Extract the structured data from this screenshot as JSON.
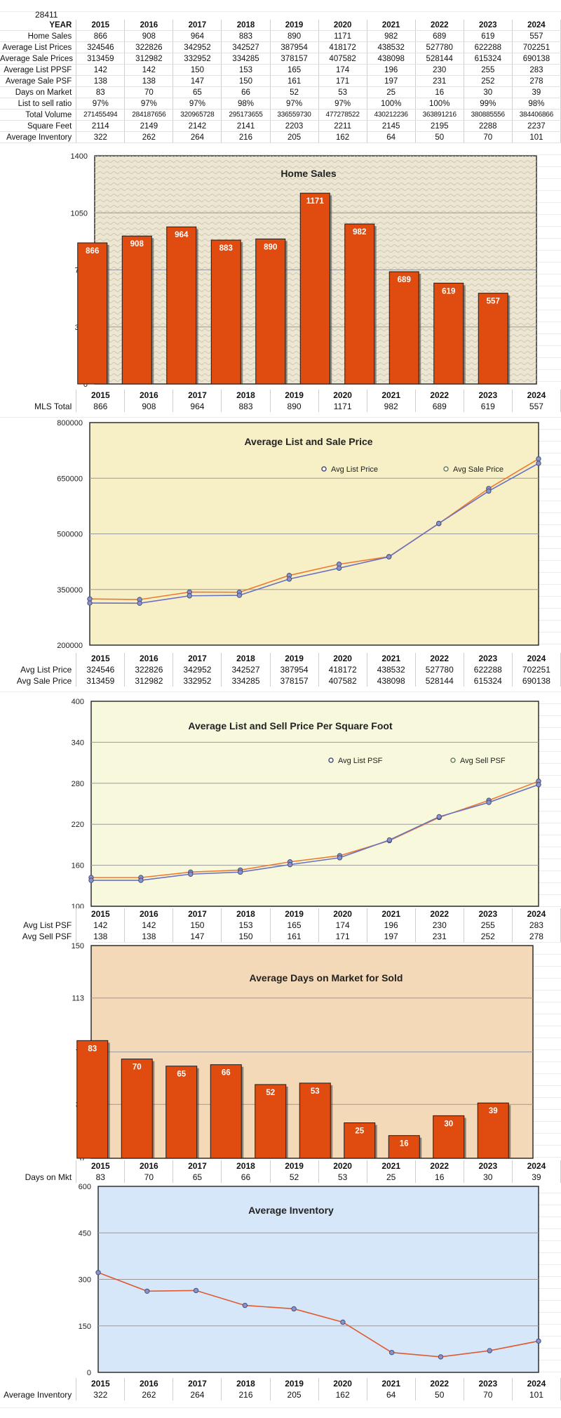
{
  "sheet_id": "28411",
  "table": {
    "year_header": "YEAR",
    "years": [
      "2015",
      "2016",
      "2017",
      "2018",
      "2019",
      "2020",
      "2021",
      "2022",
      "2023",
      "2024"
    ],
    "rows": [
      {
        "label": "Home Sales",
        "values": [
          "866",
          "908",
          "964",
          "883",
          "890",
          "1171",
          "982",
          "689",
          "619",
          "557"
        ]
      },
      {
        "label": "Average List Prices",
        "values": [
          "324546",
          "322826",
          "342952",
          "342527",
          "387954",
          "418172",
          "438532",
          "527780",
          "622288",
          "702251"
        ]
      },
      {
        "label": "Average Sale Prices",
        "values": [
          "313459",
          "312982",
          "332952",
          "334285",
          "378157",
          "407582",
          "438098",
          "528144",
          "615324",
          "690138"
        ]
      },
      {
        "label": "Average List PPSF",
        "values": [
          "142",
          "142",
          "150",
          "153",
          "165",
          "174",
          "196",
          "230",
          "255",
          "283"
        ]
      },
      {
        "label": "Average Sale PSF",
        "values": [
          "138",
          "138",
          "147",
          "150",
          "161",
          "171",
          "197",
          "231",
          "252",
          "278"
        ]
      },
      {
        "label": "Days on Market",
        "values": [
          "83",
          "70",
          "65",
          "66",
          "52",
          "53",
          "25",
          "16",
          "30",
          "39"
        ]
      },
      {
        "label": "List to sell ratio",
        "values": [
          "97%",
          "97%",
          "97%",
          "98%",
          "97%",
          "97%",
          "100%",
          "100%",
          "99%",
          "98%"
        ]
      },
      {
        "label": "Total Volume",
        "values": [
          "271455494",
          "284187656",
          "320965728",
          "295173655",
          "336559730",
          "477278522",
          "430212236",
          "363891216",
          "380885556",
          "384406866"
        ]
      },
      {
        "label": "Square Feet",
        "values": [
          "2114",
          "2149",
          "2142",
          "2141",
          "2203",
          "2211",
          "2145",
          "2195",
          "2288",
          "2237"
        ]
      },
      {
        "label": "Average Inventory",
        "values": [
          "322",
          "262",
          "264",
          "216",
          "205",
          "162",
          "64",
          "50",
          "70",
          "101"
        ]
      }
    ]
  },
  "chart_data": [
    {
      "type": "bar",
      "title": "Home Sales",
      "categories": [
        "2015",
        "2016",
        "2017",
        "2018",
        "2019",
        "2020",
        "2021",
        "2022",
        "2023",
        "2024"
      ],
      "series": [
        {
          "name": "MLS Total",
          "values": [
            866,
            908,
            964,
            883,
            890,
            1171,
            982,
            689,
            619,
            557
          ]
        }
      ],
      "ylim": [
        0,
        1400
      ],
      "yticks": [
        "0",
        "350",
        "700",
        "1050",
        "1400"
      ],
      "bar_color": "#e04c10",
      "grid": true,
      "data_labels": true
    },
    {
      "type": "line",
      "title": "Average List and Sale Price",
      "categories": [
        "2015",
        "2016",
        "2017",
        "2018",
        "2019",
        "2020",
        "2021",
        "2022",
        "2023",
        "2024"
      ],
      "series": [
        {
          "name": "Avg List Price",
          "color": "#ee7a30",
          "values": [
            324546,
            322826,
            342952,
            342527,
            387954,
            418172,
            438532,
            527780,
            622288,
            702251
          ]
        },
        {
          "name": "Avg Sale Price",
          "color": "#6a72c0",
          "values": [
            313459,
            312982,
            332952,
            334285,
            378157,
            407582,
            438098,
            528144,
            615324,
            690138
          ]
        }
      ],
      "legend_labels": [
        "Avg List Price",
        "Avg Sale Price"
      ],
      "legend_placement": "top-right",
      "ylim": [
        200000,
        800000
      ],
      "yticks": [
        "200000",
        "350000",
        "500000",
        "650000",
        "800000"
      ],
      "row_labels": [
        "Avg List Price",
        "Avg Sale Price"
      ]
    },
    {
      "type": "line",
      "title": "Average List and Sell Price Per Square Foot",
      "categories": [
        "2015",
        "2016",
        "2017",
        "2018",
        "2019",
        "2020",
        "2021",
        "2022",
        "2023",
        "2024"
      ],
      "series": [
        {
          "name": "Avg List PSF",
          "color": "#ee7a30",
          "values": [
            142,
            142,
            150,
            153,
            165,
            174,
            196,
            230,
            255,
            283
          ]
        },
        {
          "name": "Avg Sell PSF",
          "color": "#6a72c0",
          "values": [
            138,
            138,
            147,
            150,
            161,
            171,
            197,
            231,
            252,
            278
          ]
        }
      ],
      "legend_labels": [
        "Avg List PSF",
        "Avg Sell PSF"
      ],
      "legend_placement": "top-right",
      "ylim": [
        100,
        400
      ],
      "yticks": [
        "100",
        "160",
        "220",
        "280",
        "340",
        "400"
      ],
      "row_labels": [
        "Avg List PSF",
        "Avg Sell PSF"
      ]
    },
    {
      "type": "bar",
      "title": "Average Days on Market for Sold",
      "categories": [
        "2015",
        "2016",
        "2017",
        "2018",
        "2019",
        "2020",
        "2021",
        "2022",
        "2023",
        "2024"
      ],
      "series": [
        {
          "name": "Days on Mkt",
          "values": [
            83,
            70,
            65,
            66,
            52,
            53,
            25,
            16,
            30,
            39
          ]
        }
      ],
      "ylim": [
        0,
        150
      ],
      "yticks": [
        "0",
        "38",
        "75",
        "113",
        "150"
      ],
      "bar_color": "#e04c10",
      "grid": true,
      "data_labels": true
    },
    {
      "type": "line",
      "title": "Average Inventory",
      "categories": [
        "2015",
        "2016",
        "2017",
        "2018",
        "2019",
        "2020",
        "2021",
        "2022",
        "2023",
        "2024"
      ],
      "series": [
        {
          "name": "Average Inventory",
          "color": "#e05a30",
          "values": [
            322,
            262,
            264,
            216,
            205,
            162,
            64,
            50,
            70,
            101
          ]
        }
      ],
      "ylim": [
        0,
        600
      ],
      "yticks": [
        "0",
        "150",
        "300",
        "450",
        "600"
      ]
    }
  ],
  "colors": {
    "bar": "#e04c10",
    "panel_sales": "#ece6d2",
    "panel_price": "#f7efc6",
    "panel_psf": "#f8f9dc",
    "panel_dom": "#f4d9b8",
    "panel_inventory": "#d6e7f9"
  }
}
